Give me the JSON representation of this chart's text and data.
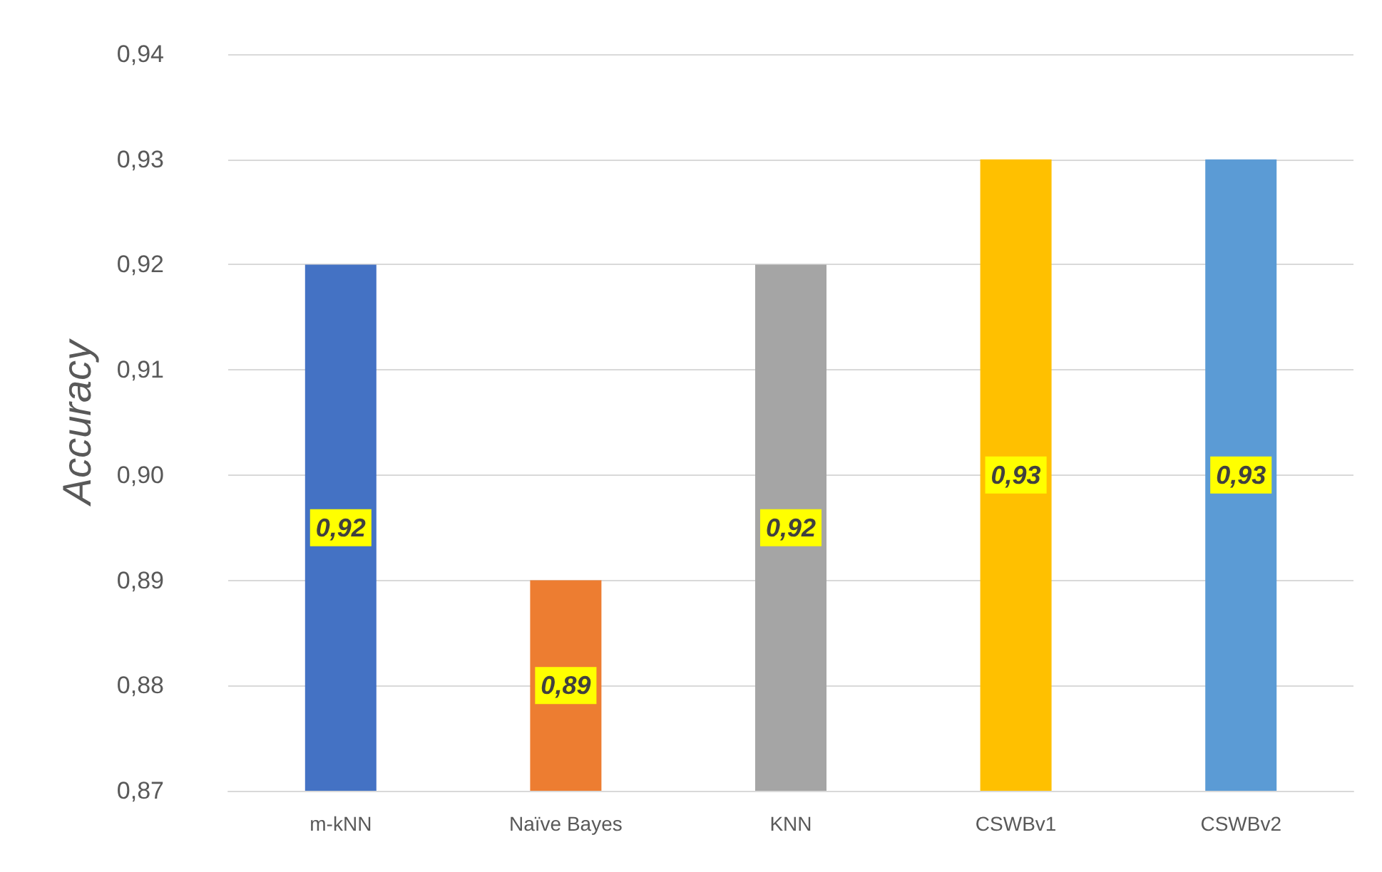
{
  "chart_data": {
    "type": "bar",
    "ylabel": "Accuracy",
    "categories": [
      "m-kNN",
      "Naïve Bayes",
      "KNN",
      "CSWBv1",
      "CSWBv2"
    ],
    "values": [
      0.92,
      0.89,
      0.92,
      0.93,
      0.93
    ],
    "colors": [
      "#4472c4",
      "#ed7d31",
      "#a5a5a5",
      "#ffc000",
      "#5b9bd5"
    ],
    "value_labels": [
      "0,92",
      "0,89",
      "0,92",
      "0,93",
      "0,93"
    ],
    "ylim": [
      0.87,
      0.94
    ],
    "yticks": [
      {
        "value": 0.87,
        "label": "0,87"
      },
      {
        "value": 0.88,
        "label": "0,88"
      },
      {
        "value": 0.89,
        "label": "0,89"
      },
      {
        "value": 0.9,
        "label": "0,90"
      },
      {
        "value": 0.91,
        "label": "0,91"
      },
      {
        "value": 0.92,
        "label": "0,92"
      },
      {
        "value": 0.93,
        "label": "0,93"
      },
      {
        "value": 0.94,
        "label": "0,94"
      }
    ],
    "grid": "y"
  }
}
